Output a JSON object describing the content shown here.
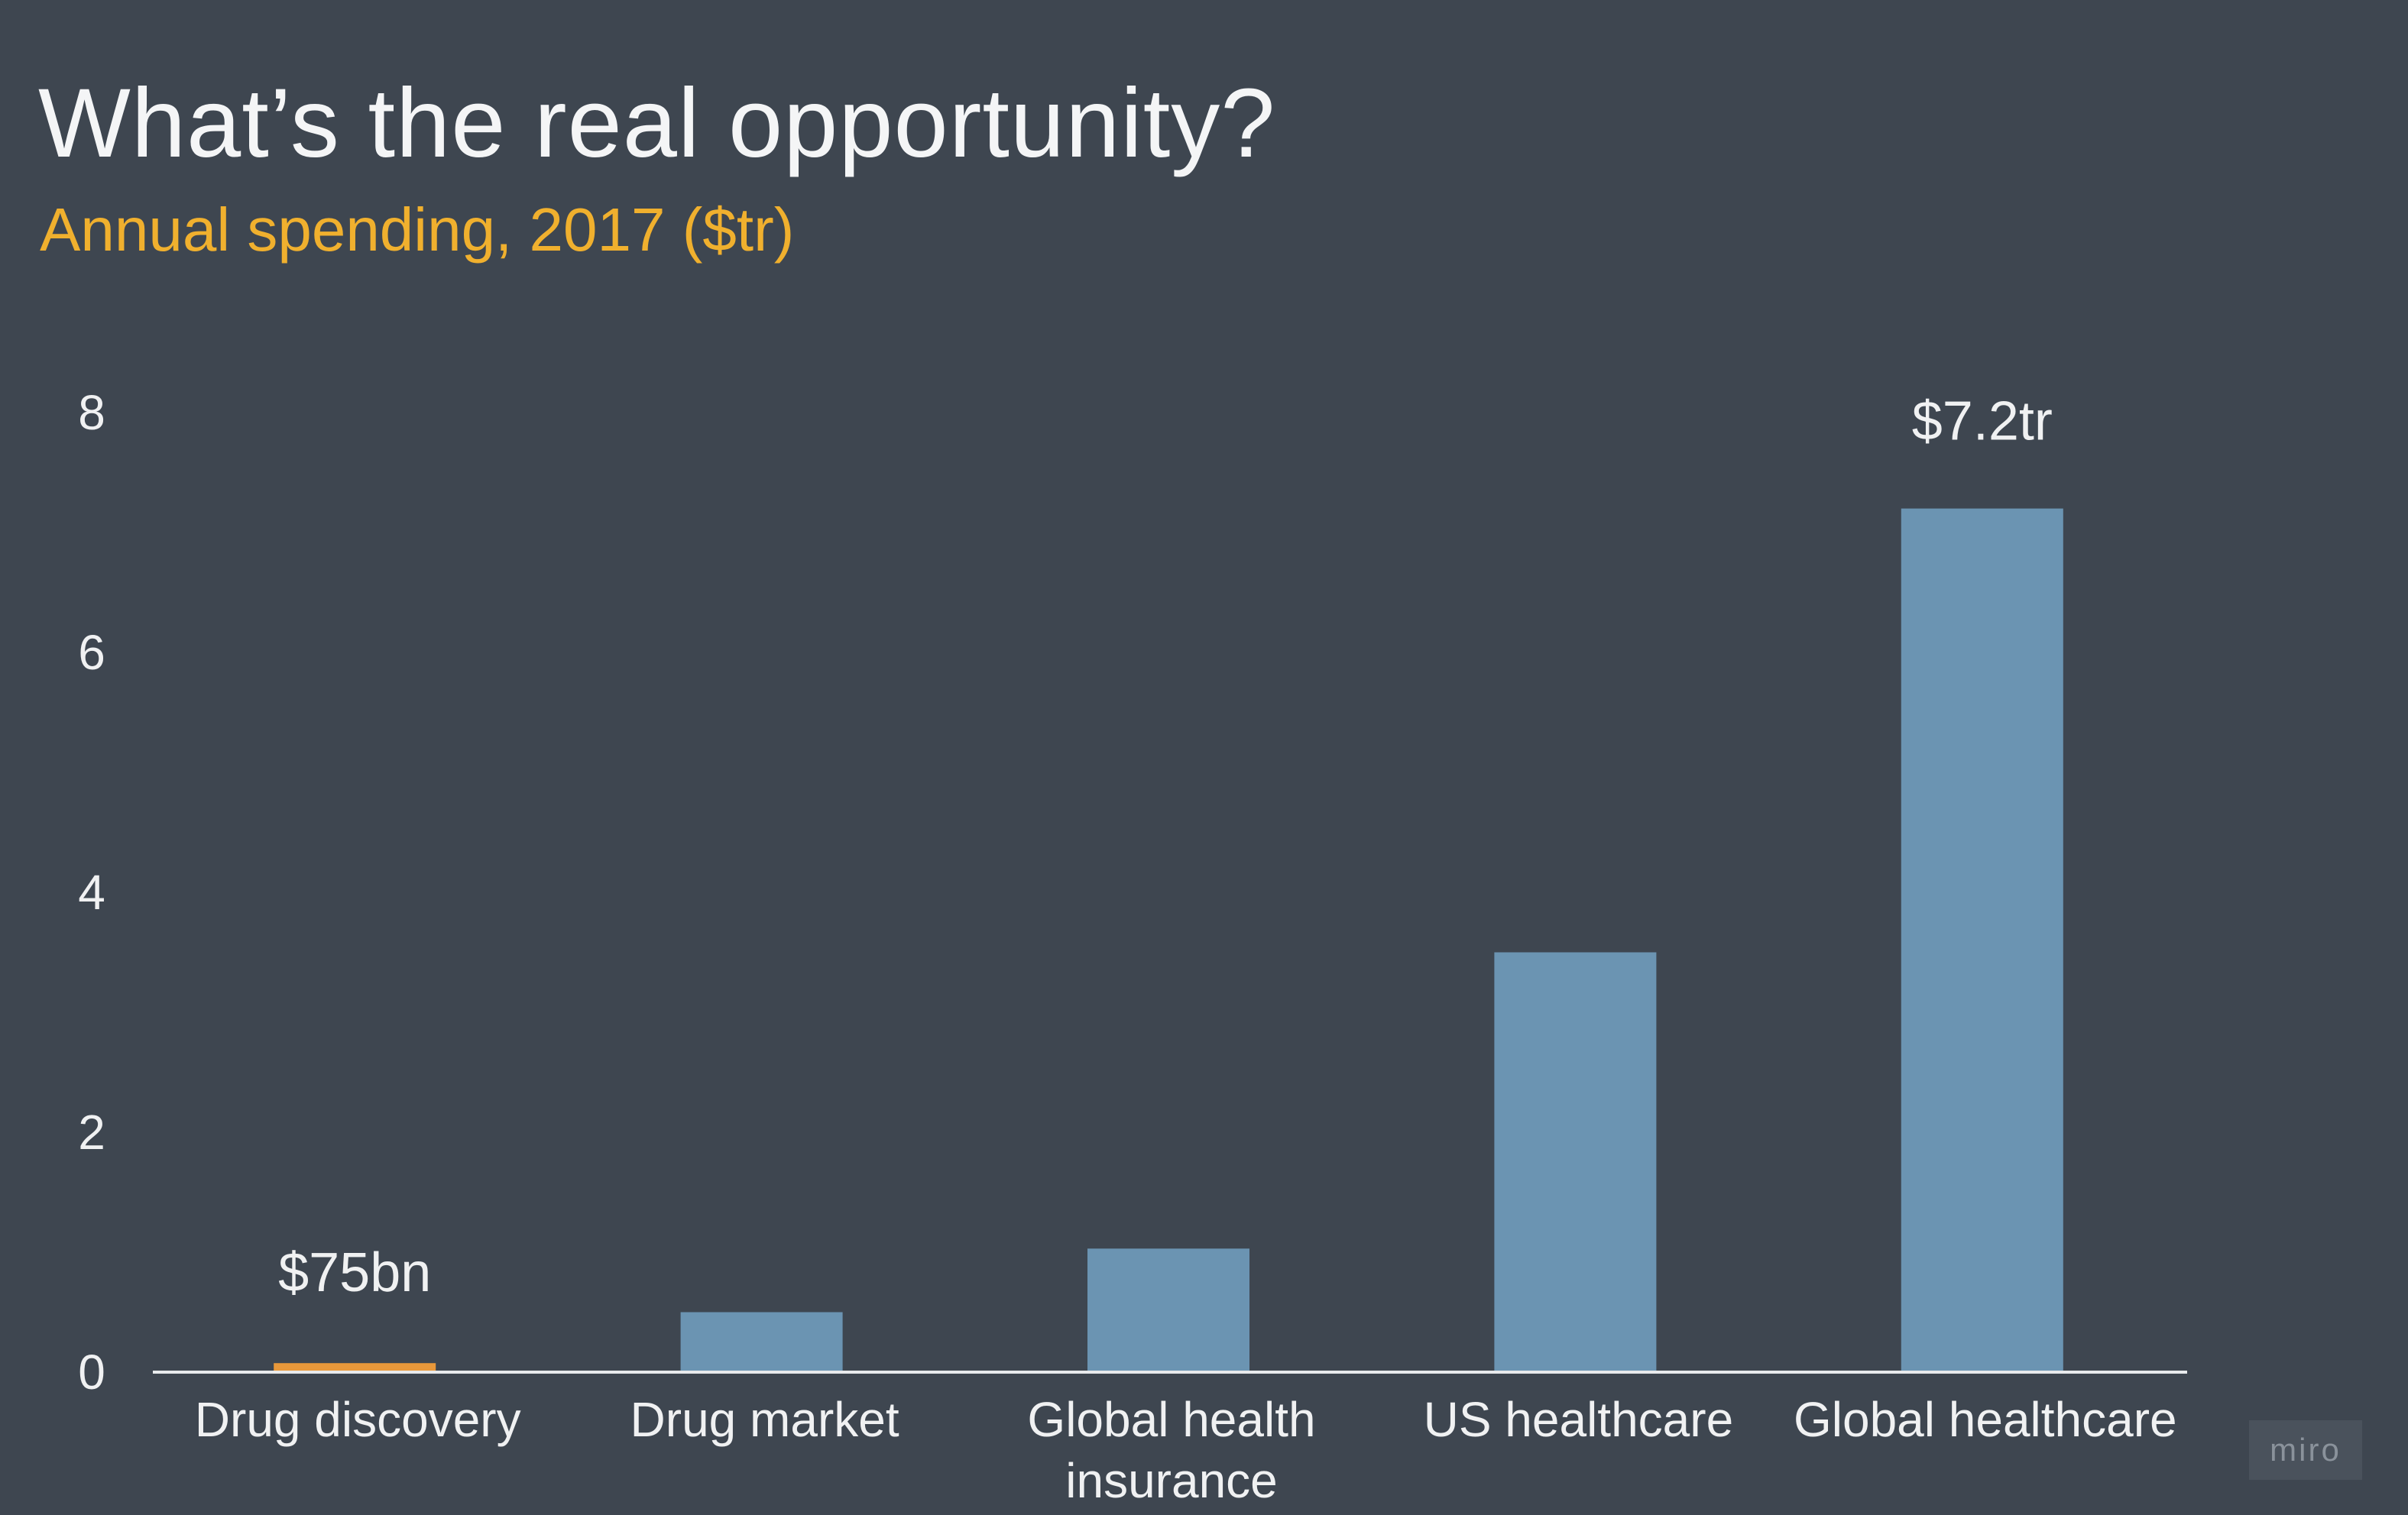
{
  "chart_data": {
    "type": "bar",
    "title": "What’s the real opportunity?",
    "subtitle": "Annual spending, 2017 ($tr)",
    "categories": [
      "Drug discovery",
      "Drug market",
      "Global health insurance",
      "US healthcare",
      "Global healthcare"
    ],
    "category_lines": [
      [
        "Drug discovery"
      ],
      [
        "Drug market"
      ],
      [
        "Global health",
        "insurance"
      ],
      [
        "US healthcare"
      ],
      [
        "Global healthcare"
      ]
    ],
    "values": [
      0.075,
      0.5,
      1.03,
      3.5,
      7.2
    ],
    "data_labels": [
      "$75bn",
      "",
      "",
      "",
      "$7.2tr"
    ],
    "highlight_index": 0,
    "yticks": [
      0,
      2,
      4,
      6,
      8
    ],
    "ylim": [
      0,
      8
    ],
    "xlabel": "",
    "ylabel": "",
    "grid": false
  },
  "colors": {
    "background": "#3e4650",
    "bar": "#6b94b2",
    "highlight_bar": "#e8983a",
    "axis": "#e8eaec",
    "title": "#f4f5f6",
    "subtitle": "#f0b02e"
  },
  "watermark": "miro"
}
